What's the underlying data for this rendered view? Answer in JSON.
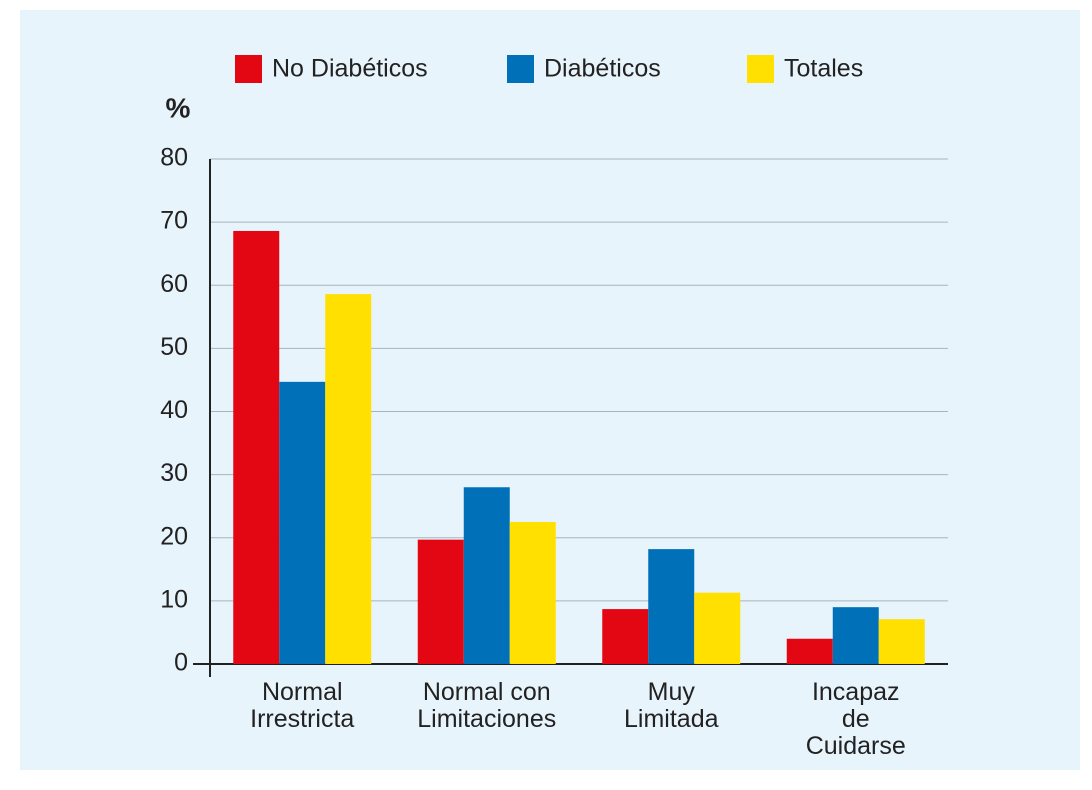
{
  "chart_data": {
    "type": "bar",
    "y_label": "%",
    "categories": [
      "Normal Irrestricta",
      "Normal con Limitaciones",
      "Muy Limitada",
      "Incapaz de Cuidarse"
    ],
    "series": [
      {
        "name": "No Diabéticos",
        "color": "#e30613",
        "values": [
          68.6,
          19.7,
          8.7,
          4.0
        ]
      },
      {
        "name": "Diabéticos",
        "color": "#0070b8",
        "values": [
          44.7,
          28.0,
          18.2,
          9.0
        ]
      },
      {
        "name": "Totales",
        "color": "#ffe000",
        "values": [
          58.6,
          22.5,
          11.3,
          7.1
        ]
      }
    ],
    "ylim": [
      0,
      80
    ],
    "yticks": [
      0,
      10,
      20,
      30,
      40,
      50,
      60,
      70,
      80
    ],
    "grid": true,
    "legend": "top"
  }
}
